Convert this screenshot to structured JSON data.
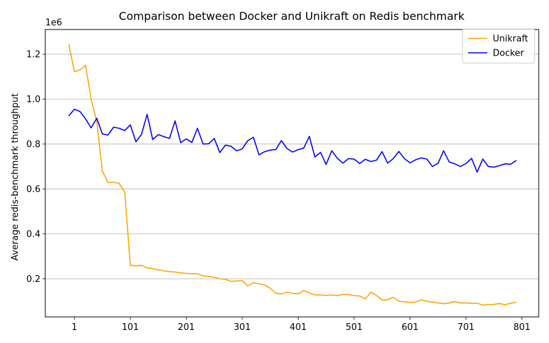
{
  "chart_data": {
    "type": "line",
    "title": "Comparison between Docker and Unikraft on Redis benchmark",
    "xlabel": "",
    "ylabel": "Average redis-benchmark throughput",
    "y_offset_label": "1e6",
    "xlim": [
      -51,
      831
    ],
    "ylim": [
      30000,
      1310000
    ],
    "x_ticks": [
      1,
      101,
      201,
      301,
      401,
      501,
      601,
      701,
      801
    ],
    "x_tick_labels": [
      "1",
      "101",
      "201",
      "301",
      "401",
      "501",
      "601",
      "701",
      "801"
    ],
    "y_ticks": [
      200000,
      400000,
      600000,
      800000,
      1000000,
      1200000
    ],
    "y_tick_labels": [
      "0.2",
      "0.4",
      "0.6",
      "0.8",
      "1.0",
      "1.2"
    ],
    "grid": "horizontal",
    "legend_position": "top-right",
    "x": [
      -9,
      1,
      11,
      21,
      31,
      41,
      51,
      61,
      71,
      81,
      91,
      101,
      111,
      121,
      131,
      141,
      151,
      161,
      171,
      181,
      191,
      201,
      211,
      221,
      231,
      241,
      251,
      261,
      271,
      281,
      291,
      301,
      311,
      321,
      331,
      341,
      351,
      361,
      371,
      381,
      391,
      401,
      411,
      421,
      431,
      441,
      451,
      461,
      471,
      481,
      491,
      501,
      511,
      521,
      531,
      541,
      551,
      561,
      571,
      581,
      591,
      601,
      611,
      621,
      631,
      641,
      651,
      661,
      671,
      681,
      691,
      701,
      711,
      721,
      731,
      741,
      751,
      761,
      771,
      781,
      791
    ],
    "series": [
      {
        "name": "Unikraft",
        "color": "#ffa500",
        "values": [
          1245000,
          1122000,
          1130000,
          1150000,
          1000000,
          900000,
          680000,
          628000,
          630000,
          625000,
          585000,
          260000,
          257000,
          260000,
          248000,
          245000,
          240000,
          235000,
          232000,
          230000,
          226000,
          224000,
          222000,
          222000,
          213000,
          210000,
          207000,
          200000,
          198000,
          188000,
          190000,
          192000,
          168000,
          182000,
          178000,
          172000,
          158000,
          136000,
          132000,
          140000,
          135000,
          133000,
          148000,
          137000,
          128000,
          128000,
          126000,
          128000,
          125000,
          130000,
          130000,
          125000,
          123000,
          110000,
          140000,
          126000,
          105000,
          106000,
          118000,
          100000,
          97000,
          94000,
          96000,
          106000,
          100000,
          96000,
          93000,
          89000,
          92000,
          98000,
          92000,
          93000,
          90000,
          91000,
          83000,
          85000,
          86000,
          90000,
          84000,
          91000,
          95000
        ]
      },
      {
        "name": "Docker",
        "color": "#0000ff",
        "values": [
          925000,
          955000,
          945000,
          912000,
          872000,
          915000,
          845000,
          840000,
          875000,
          870000,
          860000,
          885000,
          810000,
          843000,
          932000,
          820000,
          842000,
          833000,
          825000,
          903000,
          806000,
          823000,
          807000,
          870000,
          800000,
          801000,
          825000,
          762000,
          795000,
          790000,
          770000,
          778000,
          815000,
          830000,
          752000,
          766000,
          773000,
          775000,
          815000,
          780000,
          764000,
          775000,
          782000,
          834000,
          742000,
          763000,
          709000,
          770000,
          737000,
          715000,
          735000,
          733000,
          713000,
          732000,
          722000,
          728000,
          766000,
          715000,
          735000,
          767000,
          735000,
          716000,
          730000,
          738000,
          733000,
          700000,
          714000,
          770000,
          720000,
          712000,
          700000,
          713000,
          736000,
          675000,
          733000,
          700000,
          697000,
          704000,
          712000,
          710000,
          727000
        ]
      }
    ]
  }
}
